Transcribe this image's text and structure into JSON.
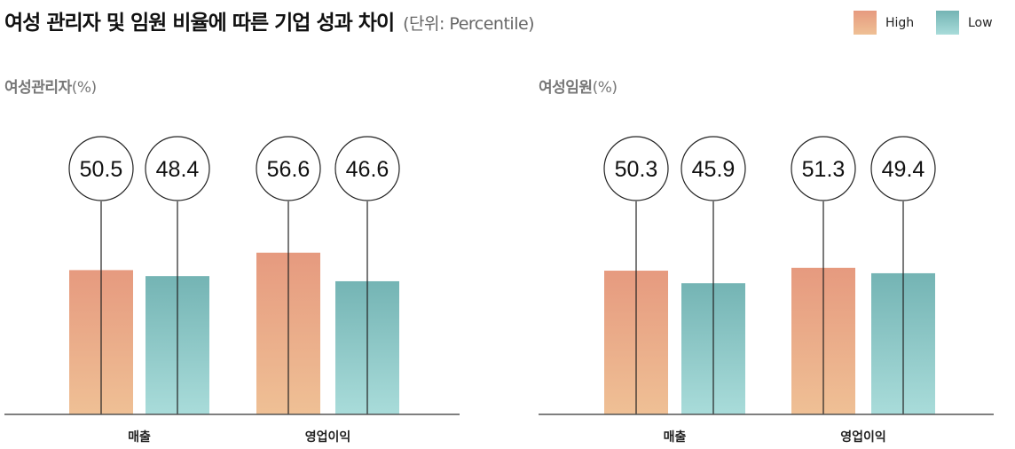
{
  "title": "여성 관리자 및 임원 비율에 따른 기업 성과 차이",
  "unit": "(단위: Percentile)",
  "legend": [
    {
      "label": "High",
      "color_top": "#e69a7f",
      "color_bottom": "#efc095"
    },
    {
      "label": "Low",
      "color_top": "#74b4b4",
      "color_bottom": "#a9dcda"
    }
  ],
  "chart_data": [
    {
      "type": "bar",
      "title": "여성관리자",
      "title_unit": "(%)",
      "categories": [
        "매출",
        "영업이익"
      ],
      "series": [
        {
          "name": "High",
          "values": [
            50.5,
            56.6
          ]
        },
        {
          "name": "Low",
          "values": [
            48.4,
            46.6
          ]
        }
      ],
      "ylim": [
        0,
        100
      ]
    },
    {
      "type": "bar",
      "title": "여성임원",
      "title_unit": "(%)",
      "categories": [
        "매출",
        "영업이익"
      ],
      "series": [
        {
          "name": "High",
          "values": [
            50.3,
            51.3
          ]
        },
        {
          "name": "Low",
          "values": [
            45.9,
            49.4
          ]
        }
      ],
      "ylim": [
        0,
        100
      ]
    }
  ]
}
